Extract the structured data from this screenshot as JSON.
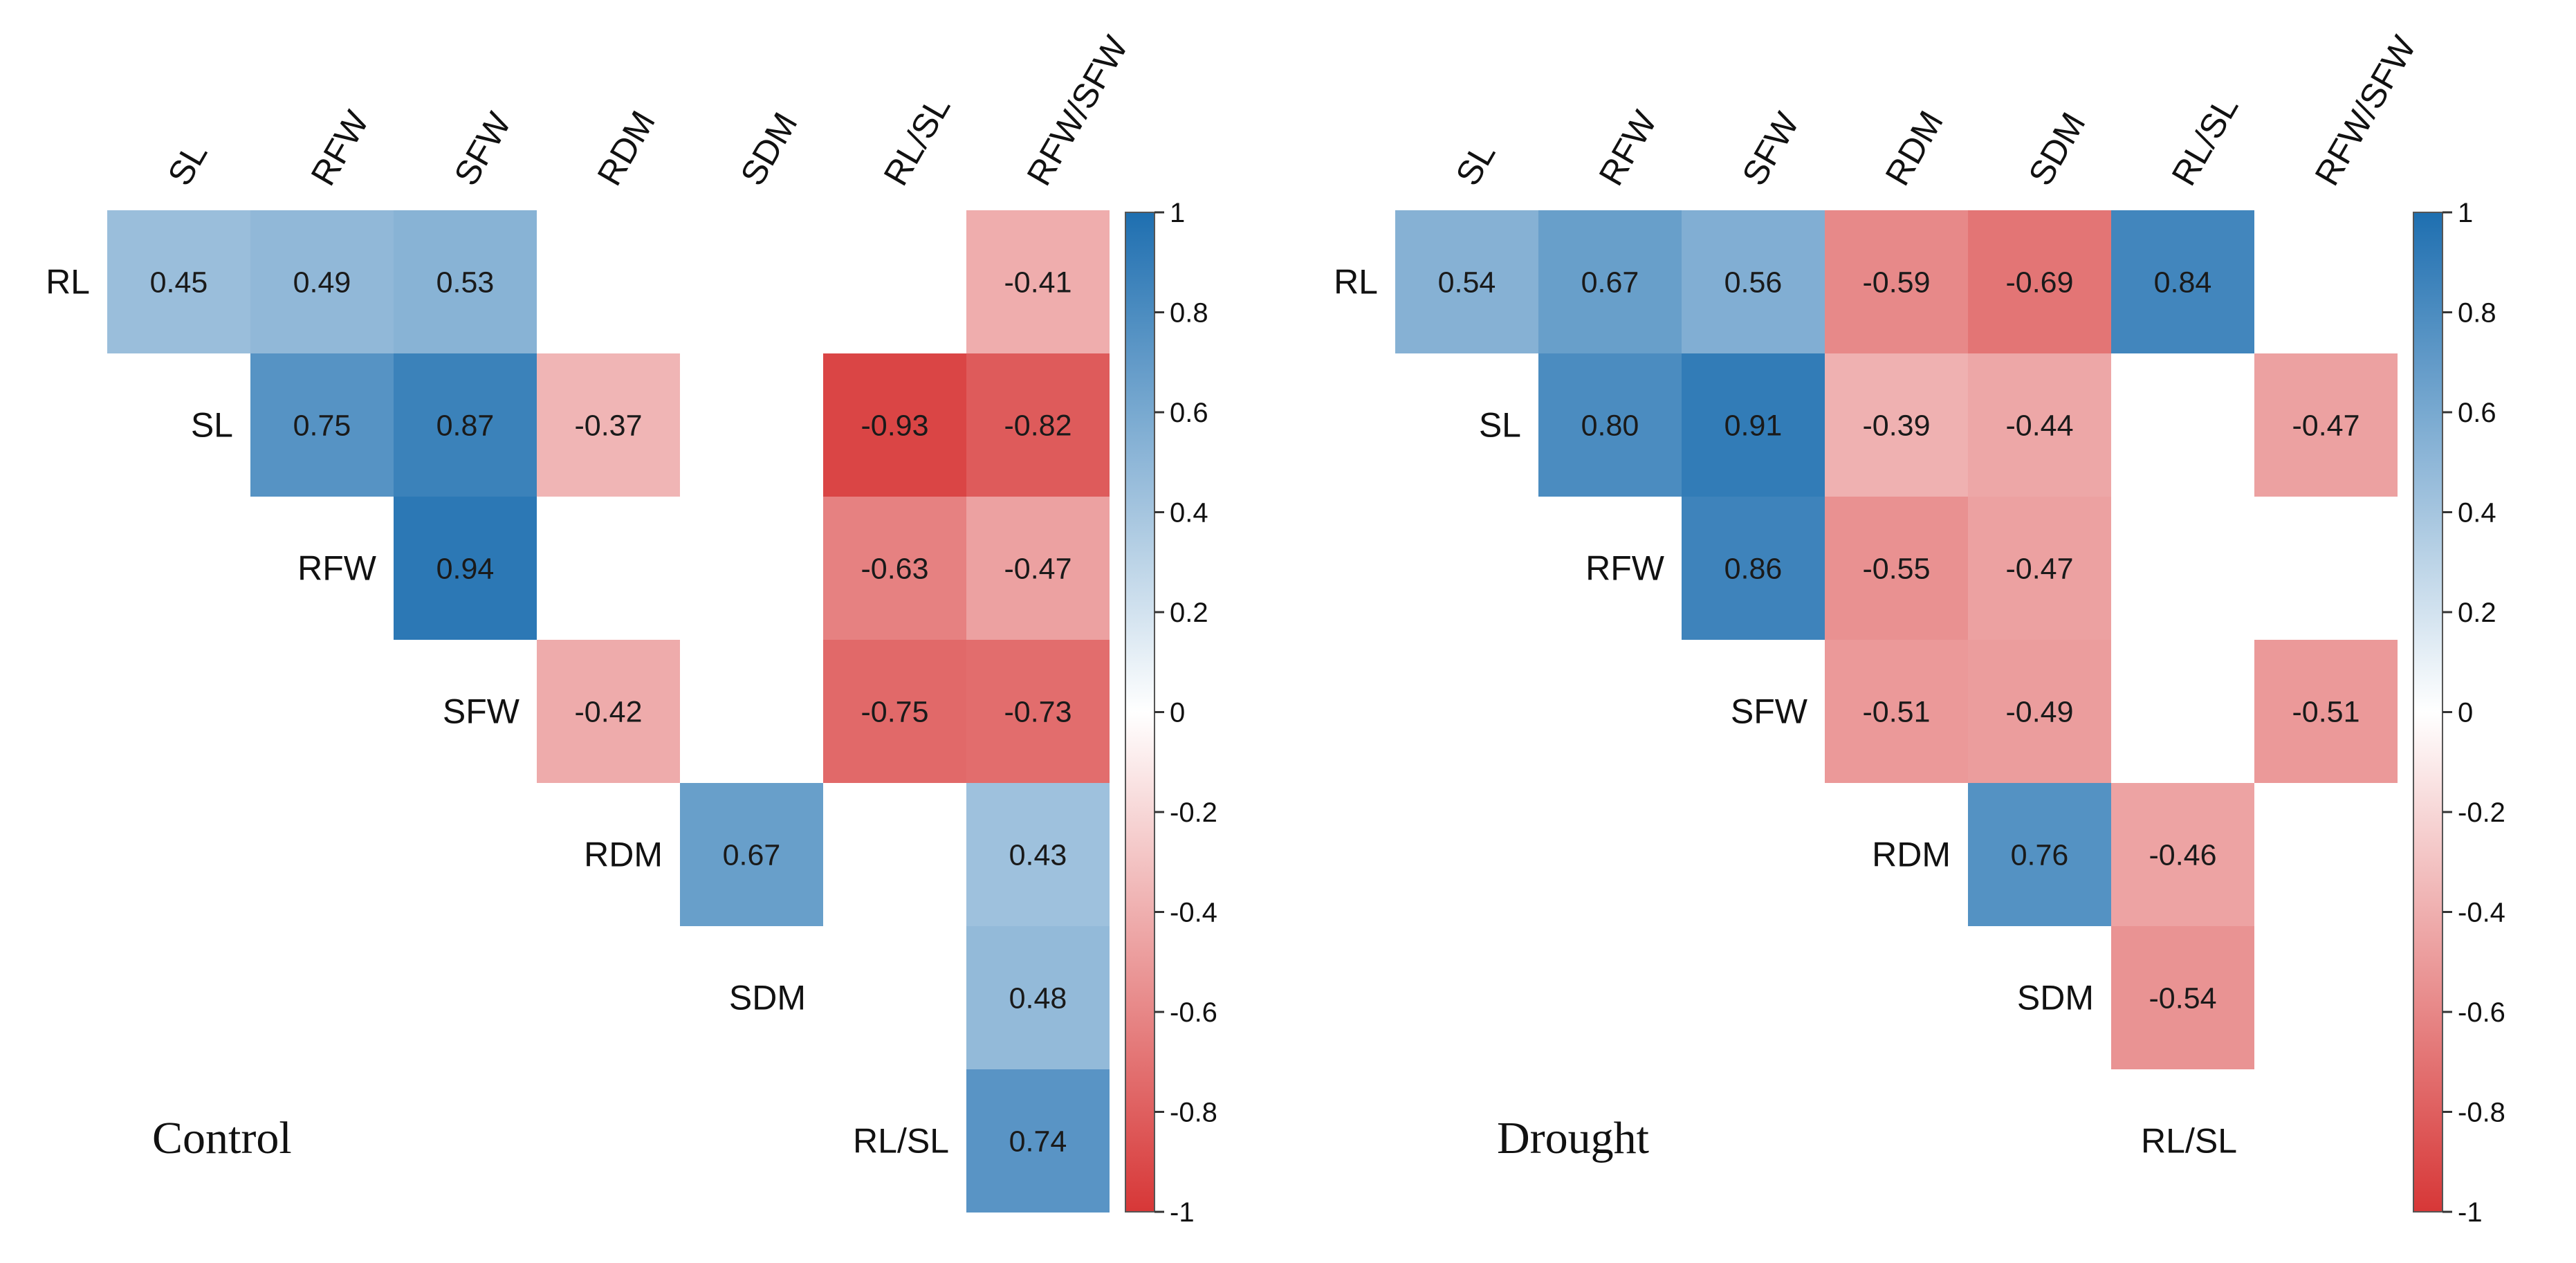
{
  "chart_data": [
    {
      "type": "heatmap",
      "title": "Control",
      "columns": [
        "SL",
        "RFW",
        "SFW",
        "RDM",
        "SDM",
        "RL/SL",
        "RFW/SFW"
      ],
      "rows": [
        "RL",
        "SL",
        "RFW",
        "SFW",
        "RDM",
        "SDM",
        "RL/SL"
      ],
      "cells": [
        {
          "row": "RL",
          "col": "SL",
          "value": 0.45
        },
        {
          "row": "RL",
          "col": "RFW",
          "value": 0.49
        },
        {
          "row": "RL",
          "col": "SFW",
          "value": 0.53
        },
        {
          "row": "RL",
          "col": "RFW/SFW",
          "value": -0.41
        },
        {
          "row": "SL",
          "col": "RFW",
          "value": 0.75
        },
        {
          "row": "SL",
          "col": "SFW",
          "value": 0.87
        },
        {
          "row": "SL",
          "col": "RDM",
          "value": -0.37
        },
        {
          "row": "SL",
          "col": "RL/SL",
          "value": -0.93
        },
        {
          "row": "SL",
          "col": "RFW/SFW",
          "value": -0.82
        },
        {
          "row": "RFW",
          "col": "SFW",
          "value": 0.94
        },
        {
          "row": "RFW",
          "col": "RL/SL",
          "value": -0.63
        },
        {
          "row": "RFW",
          "col": "RFW/SFW",
          "value": -0.47
        },
        {
          "row": "SFW",
          "col": "RDM",
          "value": -0.42
        },
        {
          "row": "SFW",
          "col": "RL/SL",
          "value": -0.75
        },
        {
          "row": "SFW",
          "col": "RFW/SFW",
          "value": -0.73
        },
        {
          "row": "RDM",
          "col": "SDM",
          "value": 0.67
        },
        {
          "row": "RDM",
          "col": "RFW/SFW",
          "value": 0.43
        },
        {
          "row": "SDM",
          "col": "RFW/SFW",
          "value": 0.48
        },
        {
          "row": "RL/SL",
          "col": "RFW/SFW",
          "value": 0.74
        }
      ],
      "colorbar": {
        "range": [
          -1,
          1
        ],
        "ticks": [
          "1",
          "0.8",
          "0.6",
          "0.4",
          "0.2",
          "0",
          "-0.2",
          "-0.4",
          "-0.6",
          "-0.8",
          "-1"
        ]
      }
    },
    {
      "type": "heatmap",
      "title": "Drought",
      "columns": [
        "SL",
        "RFW",
        "SFW",
        "RDM",
        "SDM",
        "RL/SL",
        "RFW/SFW"
      ],
      "rows": [
        "RL",
        "SL",
        "RFW",
        "SFW",
        "RDM",
        "SDM",
        "RL/SL"
      ],
      "cells": [
        {
          "row": "RL",
          "col": "SL",
          "value": 0.54
        },
        {
          "row": "RL",
          "col": "RFW",
          "value": 0.67
        },
        {
          "row": "RL",
          "col": "SFW",
          "value": 0.56
        },
        {
          "row": "RL",
          "col": "RDM",
          "value": -0.59
        },
        {
          "row": "RL",
          "col": "SDM",
          "value": -0.69
        },
        {
          "row": "RL",
          "col": "RL/SL",
          "value": 0.84
        },
        {
          "row": "SL",
          "col": "RFW",
          "value": 0.8
        },
        {
          "row": "SL",
          "col": "SFW",
          "value": 0.91
        },
        {
          "row": "SL",
          "col": "RDM",
          "value": -0.39
        },
        {
          "row": "SL",
          "col": "SDM",
          "value": -0.44
        },
        {
          "row": "SL",
          "col": "RFW/SFW",
          "value": -0.47
        },
        {
          "row": "RFW",
          "col": "SFW",
          "value": 0.86
        },
        {
          "row": "RFW",
          "col": "RDM",
          "value": -0.55
        },
        {
          "row": "RFW",
          "col": "SDM",
          "value": -0.47
        },
        {
          "row": "SFW",
          "col": "RDM",
          "value": -0.51
        },
        {
          "row": "SFW",
          "col": "SDM",
          "value": -0.49
        },
        {
          "row": "SFW",
          "col": "RFW/SFW",
          "value": -0.51
        },
        {
          "row": "RDM",
          "col": "SDM",
          "value": 0.76
        },
        {
          "row": "RDM",
          "col": "RL/SL",
          "value": -0.46
        },
        {
          "row": "SDM",
          "col": "RL/SL",
          "value": -0.54
        }
      ],
      "colorbar": {
        "range": [
          -1,
          1
        ],
        "ticks": [
          "1",
          "0.8",
          "0.6",
          "0.4",
          "0.2",
          "0",
          "-0.2",
          "-0.4",
          "-0.6",
          "-0.8",
          "-1"
        ]
      }
    }
  ],
  "colors": {
    "positive": "#1e6fb0",
    "neutral": "#ffffff",
    "negative": "#d73737"
  }
}
